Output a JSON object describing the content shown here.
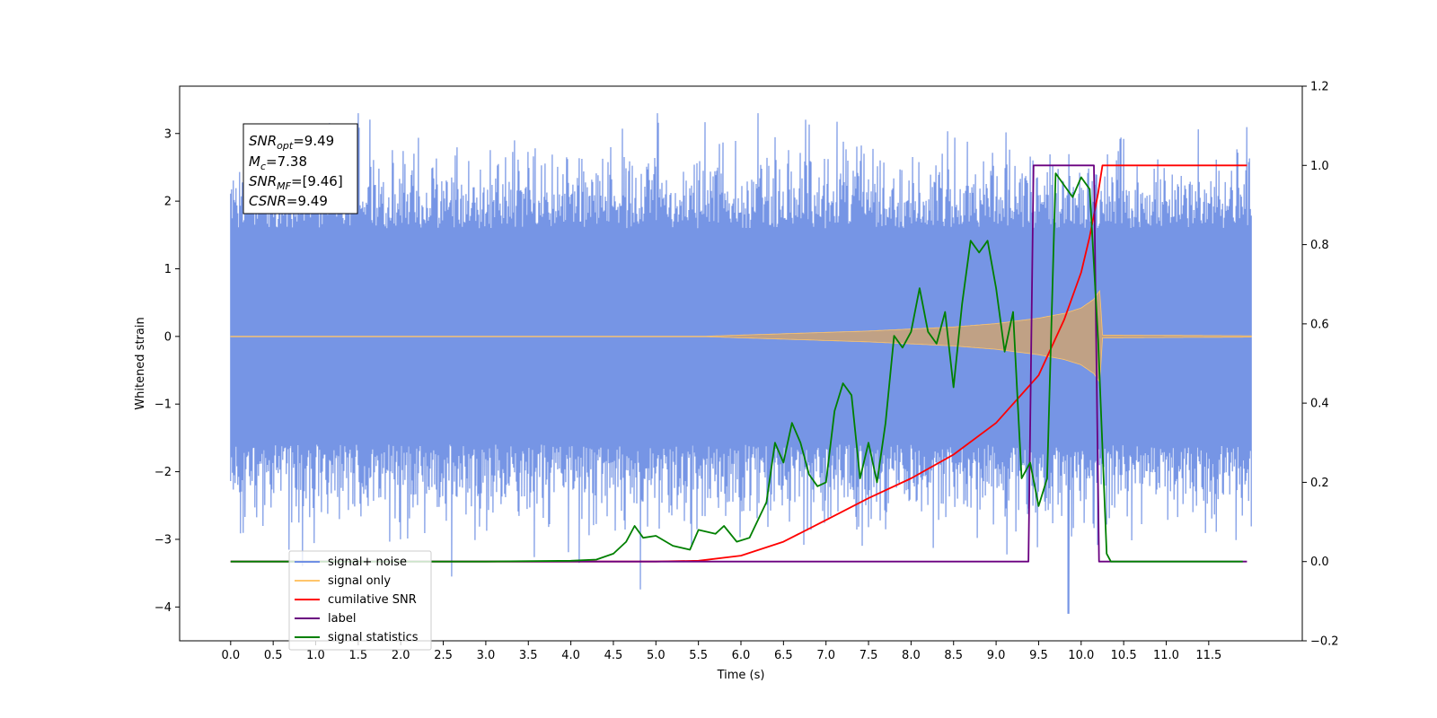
{
  "chart_data": {
    "type": "line",
    "xlabel": "Time (s)",
    "ylabel": "Whitened strain",
    "xlim": [
      -0.6,
      12.6
    ],
    "ylim": [
      -4.5,
      3.7
    ],
    "ylim_right": [
      -0.2,
      1.2
    ],
    "x_ticks": [
      0.0,
      0.5,
      1.0,
      1.5,
      2.0,
      2.5,
      3.0,
      3.5,
      4.0,
      4.5,
      5.0,
      5.5,
      6.0,
      6.5,
      7.0,
      7.5,
      8.0,
      8.5,
      9.0,
      9.5,
      10.0,
      10.5,
      11.0,
      11.5
    ],
    "x_tick_labels": [
      "0.0",
      "0.5",
      "1.0",
      "1.5",
      "2.0",
      "2.5",
      "3.0",
      "3.5",
      "4.0",
      "4.5",
      "5.0",
      "5.5",
      "6.0",
      "6.5",
      "7.0",
      "7.5",
      "8.0",
      "8.5",
      "9.0",
      "9.5",
      "10.0",
      "10.5",
      "11.0",
      "11.5"
    ],
    "y_ticks_left": [
      -4,
      -3,
      -2,
      -1,
      0,
      1,
      2,
      3
    ],
    "y_tick_labels_left": [
      "−4",
      "−3",
      "−2",
      "−1",
      "0",
      "1",
      "2",
      "3"
    ],
    "y_ticks_right": [
      -0.2,
      0.0,
      0.2,
      0.4,
      0.6,
      0.8,
      1.0,
      1.2
    ],
    "y_tick_labels_right": [
      "−0.2",
      "0.0",
      "0.2",
      "0.4",
      "0.6",
      "0.8",
      "1.0",
      "1.2"
    ],
    "legend_placement": "lower-left",
    "series": [
      {
        "name": "signal+ noise",
        "color": "#6f8fe4",
        "axis": "left",
        "x_range": [
          0.0,
          12.0
        ],
        "band": {
          "typical_half_width": 1.6,
          "max_peak": 3.3,
          "min_trough": -4.1
        },
        "notable_extrema": [
          {
            "x": 1.5,
            "y": 3.3
          },
          {
            "x": 6.2,
            "y": 3.3
          },
          {
            "x": 2.6,
            "y": -3.55
          },
          {
            "x": 4.1,
            "y": -3.35
          },
          {
            "x": 9.85,
            "y": -4.1
          }
        ]
      },
      {
        "name": "signal only",
        "color": "#ffc56b",
        "axis": "left",
        "envelope": {
          "x": [
            0.0,
            5.5,
            6.0,
            6.5,
            7.0,
            7.5,
            8.0,
            8.5,
            9.0,
            9.5,
            9.8,
            10.0,
            10.15,
            10.22,
            10.25,
            12.0
          ],
          "amplitude": [
            0.0,
            0.0,
            0.02,
            0.04,
            0.06,
            0.08,
            0.11,
            0.14,
            0.19,
            0.27,
            0.34,
            0.42,
            0.55,
            0.68,
            0.02,
            0.01
          ]
        }
      },
      {
        "name": "cumilative SNR",
        "color": "#ff0000",
        "axis": "right",
        "x": [
          0.0,
          5.0,
          5.5,
          6.0,
          6.5,
          7.0,
          7.5,
          8.0,
          8.5,
          9.0,
          9.5,
          9.8,
          10.0,
          10.1,
          10.2,
          10.25,
          11.95
        ],
        "values": [
          0.0,
          0.0,
          0.002,
          0.015,
          0.05,
          0.105,
          0.16,
          0.21,
          0.27,
          0.35,
          0.47,
          0.61,
          0.73,
          0.82,
          0.93,
          1.0,
          1.0
        ]
      },
      {
        "name": "label",
        "color": "#6a0080",
        "axis": "right",
        "x": [
          0.0,
          9.38,
          9.44,
          10.15,
          10.21,
          11.95
        ],
        "values": [
          0.0,
          0.0,
          1.0,
          1.0,
          0.0,
          0.0
        ]
      },
      {
        "name": "signal statistics",
        "color": "#008000",
        "axis": "right",
        "x": [
          0.0,
          3.0,
          4.0,
          4.3,
          4.5,
          4.65,
          4.75,
          4.85,
          5.0,
          5.2,
          5.4,
          5.5,
          5.7,
          5.8,
          5.95,
          6.1,
          6.3,
          6.4,
          6.5,
          6.6,
          6.7,
          6.8,
          6.9,
          7.0,
          7.1,
          7.2,
          7.3,
          7.4,
          7.5,
          7.6,
          7.7,
          7.8,
          7.9,
          8.0,
          8.1,
          8.2,
          8.3,
          8.4,
          8.5,
          8.6,
          8.7,
          8.8,
          8.9,
          9.0,
          9.1,
          9.2,
          9.3,
          9.4,
          9.5,
          9.6,
          9.7,
          9.8,
          9.9,
          10.0,
          10.1,
          10.2,
          10.3,
          10.35,
          11.9
        ],
        "values": [
          0.0,
          0.0,
          0.002,
          0.005,
          0.02,
          0.05,
          0.09,
          0.06,
          0.065,
          0.04,
          0.03,
          0.08,
          0.07,
          0.09,
          0.05,
          0.06,
          0.15,
          0.3,
          0.25,
          0.35,
          0.3,
          0.22,
          0.19,
          0.2,
          0.38,
          0.45,
          0.42,
          0.21,
          0.3,
          0.2,
          0.35,
          0.57,
          0.54,
          0.58,
          0.69,
          0.58,
          0.55,
          0.63,
          0.44,
          0.65,
          0.81,
          0.78,
          0.81,
          0.69,
          0.53,
          0.63,
          0.21,
          0.25,
          0.14,
          0.21,
          0.98,
          0.95,
          0.92,
          0.97,
          0.94,
          0.56,
          0.02,
          0.0,
          0.0
        ]
      }
    ],
    "legend": [
      "signal+ noise",
      "signal only",
      "cumilative SNR",
      "label",
      "signal statistics"
    ],
    "stats_box": {
      "snr_opt_sym": "SNR",
      "snr_opt_sub": "opt",
      "snr_opt_val": "=9.49",
      "mc_sym": "M",
      "mc_sub": "c",
      "mc_val": "=7.38",
      "snr_mf_sym": "SNR",
      "snr_mf_sub": "MF",
      "snr_mf_val": "=[9.46]",
      "csnr_sym": "CSNR",
      "csnr_val": "=9.49"
    }
  }
}
